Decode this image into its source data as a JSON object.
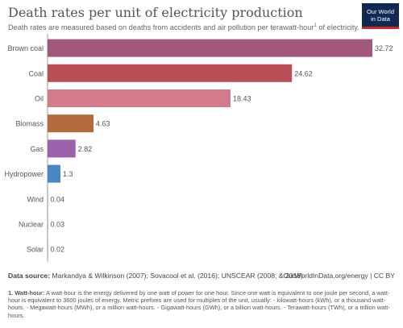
{
  "header": {
    "title": "Death rates per unit of electricity production",
    "subtitle": "Death rates are measured based on deaths from accidents and air pollution per terawatt-hour",
    "subtitle_sup": "1",
    "subtitle_end": " of electricity."
  },
  "logo": {
    "line1": "Our World",
    "line2": "in Data"
  },
  "chart_data": {
    "type": "bar",
    "orientation": "horizontal",
    "title": "Death rates per unit of electricity production",
    "categories": [
      "Brown coal",
      "Coal",
      "Oil",
      "Biomass",
      "Gas",
      "Hydropower",
      "Wind",
      "Nuclear",
      "Solar"
    ],
    "values": [
      32.72,
      24.62,
      18.43,
      4.63,
      2.82,
      1.3,
      0.04,
      0.03,
      0.02
    ],
    "value_labels": [
      "32.72",
      "24.62",
      "18.43",
      "4.63",
      "2.82",
      "1.3",
      "0.04",
      "0.03",
      "0.02"
    ],
    "colors": [
      "#a2587a",
      "#b94f56",
      "#d57a8a",
      "#b46b3c",
      "#9a62ab",
      "#4a86c5",
      "#4a86c5",
      "#4a86c5",
      "#4a86c5"
    ],
    "xlim": [
      0,
      32.72
    ],
    "grid": false,
    "legend": "none"
  },
  "footer": {
    "source_label": "Data source:",
    "source_text": " Markandya & Wilkinson (2007); Sovacool et al. (2016); UNSCEAR (2008; & 2018)",
    "owid_credit": "OurWorldInData.org/energy | CC BY",
    "footnote_title": "1. Watt-hour:",
    "footnote_text": " A watt-hour is the energy delivered by one watt of power for one hour. Since one watt is equivalent to one joule per second, a watt-hour is equivalent to 3600 joules of energy. Metric prefixes are used for multiples of the unit, usually: - kilowatt-hours (kWh), or a thousand watt-hours. - Megawatt-hours (MWh), or a million watt-hours. - Gigawatt-hours (GWh), or a billion watt-hours. - Terawatt-hours (TWh), or a trillion watt-hours."
  }
}
